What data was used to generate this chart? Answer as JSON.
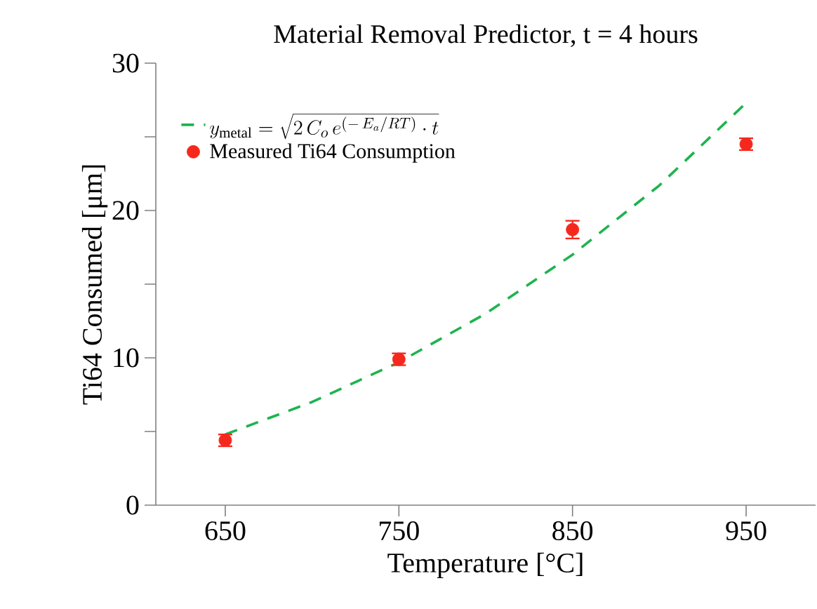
{
  "chart_data": {
    "type": "scatter",
    "title": "Material Removal Predictor, t = 4 hours",
    "xlabel": "Temperature [°C]",
    "ylabel": "Ti64 Consumed [μm]",
    "xlim": [
      610,
      990
    ],
    "xticks": [
      650,
      750,
      850,
      950
    ],
    "ylim": [
      0,
      30
    ],
    "yticks": [
      0,
      {
        "value": 5,
        "label": null
      },
      10,
      {
        "value": 15,
        "label": null
      },
      20,
      {
        "value": 25,
        "label": null
      },
      30
    ],
    "grid": false,
    "legend": "top left",
    "series": [
      {
        "name": "y_{\\mathrm{metal}} = \\sqrt{2\\,C_{o}\\,e^{(-\\,E_{a}/RT)}\\cdot t}",
        "type": "line",
        "color": "#1db44e",
        "line_style": "dashed",
        "marker": "none",
        "x": [
          650,
          700,
          750,
          800,
          850,
          900,
          950
        ],
        "values": [
          4.8,
          7.0,
          9.7,
          13.0,
          17.0,
          21.7,
          27.3
        ]
      },
      {
        "name": "Measured Ti64 Consumption",
        "color": "#f5281e",
        "marker": "circle",
        "x": [
          650,
          750,
          850,
          950
        ],
        "values": [
          4.4,
          9.9,
          18.7,
          24.5
        ],
        "errors": [
          0.4,
          0.4,
          0.6,
          0.4
        ]
      }
    ]
  }
}
